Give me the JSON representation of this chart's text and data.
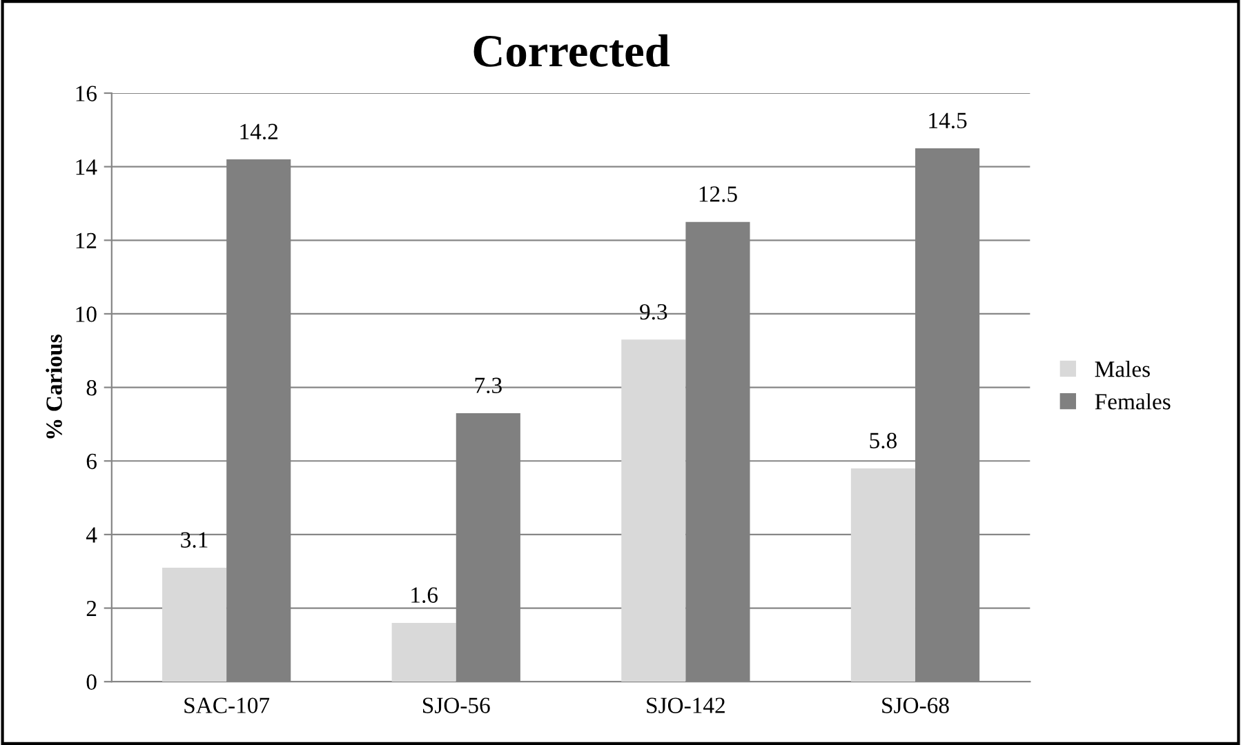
{
  "chart_data": {
    "type": "bar",
    "title": "Corrected",
    "ylabel": "% Carious",
    "categories": [
      "SAC-107",
      "SJO-56",
      "SJO-142",
      "SJO-68"
    ],
    "series": [
      {
        "name": "Males",
        "color": "#d9d9d9",
        "values": [
          3.1,
          1.6,
          9.3,
          5.8
        ]
      },
      {
        "name": "Females",
        "color": "#808080",
        "values": [
          14.2,
          7.3,
          12.5,
          14.5
        ]
      }
    ],
    "ylim": [
      0,
      16
    ],
    "yticks": [
      0,
      2,
      4,
      6,
      8,
      10,
      12,
      14,
      16
    ],
    "grid": "y",
    "legend": "right",
    "data_labels": true
  }
}
